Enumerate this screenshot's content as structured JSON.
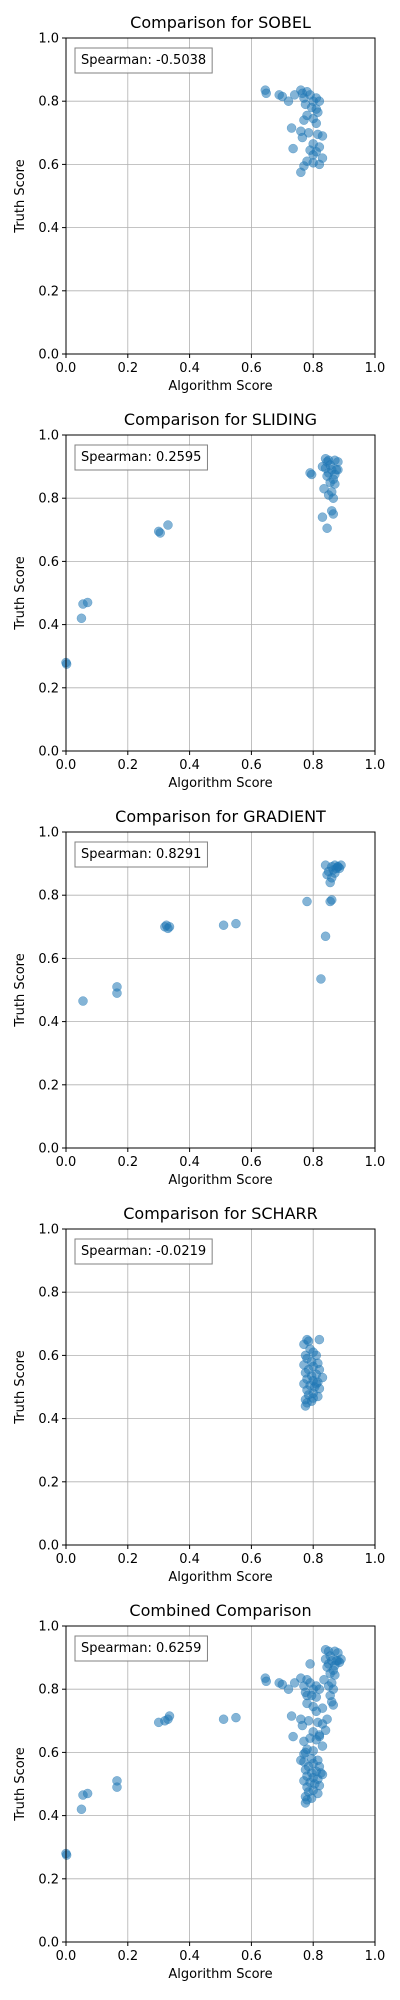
{
  "colors": {
    "point": "#1f77b4",
    "grid": "#b0b0b0",
    "axis": "#000000"
  },
  "chart_data": [
    {
      "type": "scatter",
      "title": "Comparison for SOBEL",
      "xlabel": "Algorithm Score",
      "ylabel": "Truth Score",
      "xlim": [
        0,
        1
      ],
      "ylim": [
        0,
        1
      ],
      "xticks": [
        "0.0",
        "0.2",
        "0.4",
        "0.6",
        "0.8",
        "1.0"
      ],
      "yticks": [
        "0.0",
        "0.2",
        "0.4",
        "0.6",
        "0.8",
        "1.0"
      ],
      "grid": true,
      "annotation": "Spearman: -0.5038",
      "points": [
        [
          0.645,
          0.835
        ],
        [
          0.648,
          0.825
        ],
        [
          0.69,
          0.82
        ],
        [
          0.7,
          0.815
        ],
        [
          0.72,
          0.8
        ],
        [
          0.74,
          0.82
        ],
        [
          0.76,
          0.835
        ],
        [
          0.765,
          0.825
        ],
        [
          0.77,
          0.81
        ],
        [
          0.78,
          0.83
        ],
        [
          0.79,
          0.82
        ],
        [
          0.8,
          0.8
        ],
        [
          0.81,
          0.81
        ],
        [
          0.82,
          0.8
        ],
        [
          0.775,
          0.79
        ],
        [
          0.795,
          0.78
        ],
        [
          0.81,
          0.775
        ],
        [
          0.815,
          0.765
        ],
        [
          0.78,
          0.755
        ],
        [
          0.8,
          0.745
        ],
        [
          0.77,
          0.74
        ],
        [
          0.81,
          0.73
        ],
        [
          0.73,
          0.715
        ],
        [
          0.76,
          0.705
        ],
        [
          0.785,
          0.7
        ],
        [
          0.815,
          0.695
        ],
        [
          0.83,
          0.69
        ],
        [
          0.765,
          0.685
        ],
        [
          0.8,
          0.665
        ],
        [
          0.82,
          0.655
        ],
        [
          0.735,
          0.65
        ],
        [
          0.79,
          0.645
        ],
        [
          0.81,
          0.64
        ],
        [
          0.83,
          0.62
        ],
        [
          0.78,
          0.61
        ],
        [
          0.8,
          0.605
        ],
        [
          0.77,
          0.595
        ],
        [
          0.76,
          0.575
        ],
        [
          0.82,
          0.6
        ],
        [
          0.8,
          0.63
        ]
      ]
    },
    {
      "type": "scatter",
      "title": "Comparison for SLIDING",
      "xlabel": "Algorithm Score",
      "ylabel": "Truth Score",
      "xlim": [
        0,
        1
      ],
      "ylim": [
        0,
        1
      ],
      "xticks": [
        "0.0",
        "0.2",
        "0.4",
        "0.6",
        "0.8",
        "1.0"
      ],
      "yticks": [
        "0.0",
        "0.2",
        "0.4",
        "0.6",
        "0.8",
        "1.0"
      ],
      "grid": true,
      "annotation": "Spearman: 0.2595",
      "points": [
        [
          0.0,
          0.28
        ],
        [
          0.002,
          0.275
        ],
        [
          0.05,
          0.42
        ],
        [
          0.055,
          0.465
        ],
        [
          0.07,
          0.47
        ],
        [
          0.3,
          0.695
        ],
        [
          0.305,
          0.69
        ],
        [
          0.33,
          0.715
        ],
        [
          0.79,
          0.88
        ],
        [
          0.795,
          0.875
        ],
        [
          0.84,
          0.925
        ],
        [
          0.845,
          0.915
        ],
        [
          0.85,
          0.92
        ],
        [
          0.87,
          0.92
        ],
        [
          0.88,
          0.915
        ],
        [
          0.855,
          0.905
        ],
        [
          0.84,
          0.895
        ],
        [
          0.86,
          0.89
        ],
        [
          0.875,
          0.89
        ],
        [
          0.85,
          0.88
        ],
        [
          0.87,
          0.875
        ],
        [
          0.845,
          0.87
        ],
        [
          0.865,
          0.86
        ],
        [
          0.855,
          0.85
        ],
        [
          0.87,
          0.845
        ],
        [
          0.835,
          0.83
        ],
        [
          0.86,
          0.82
        ],
        [
          0.85,
          0.81
        ],
        [
          0.865,
          0.8
        ],
        [
          0.86,
          0.76
        ],
        [
          0.865,
          0.75
        ],
        [
          0.83,
          0.74
        ],
        [
          0.845,
          0.705
        ],
        [
          0.88,
          0.89
        ],
        [
          0.83,
          0.9
        ]
      ]
    },
    {
      "type": "scatter",
      "title": "Comparison for GRADIENT",
      "xlabel": "Algorithm Score",
      "ylabel": "Truth Score",
      "xlim": [
        0,
        1
      ],
      "ylim": [
        0,
        1
      ],
      "xticks": [
        "0.0",
        "0.2",
        "0.4",
        "0.6",
        "0.8",
        "1.0"
      ],
      "yticks": [
        "0.0",
        "0.2",
        "0.4",
        "0.6",
        "0.8",
        "1.0"
      ],
      "grid": true,
      "annotation": "Spearman: 0.8291",
      "points": [
        [
          0.055,
          0.465
        ],
        [
          0.165,
          0.49
        ],
        [
          0.165,
          0.51
        ],
        [
          0.32,
          0.7
        ],
        [
          0.325,
          0.705
        ],
        [
          0.33,
          0.695
        ],
        [
          0.335,
          0.7
        ],
        [
          0.51,
          0.705
        ],
        [
          0.55,
          0.71
        ],
        [
          0.78,
          0.78
        ],
        [
          0.825,
          0.535
        ],
        [
          0.84,
          0.67
        ],
        [
          0.855,
          0.78
        ],
        [
          0.86,
          0.785
        ],
        [
          0.84,
          0.895
        ],
        [
          0.86,
          0.89
        ],
        [
          0.87,
          0.895
        ],
        [
          0.88,
          0.89
        ],
        [
          0.89,
          0.895
        ],
        [
          0.875,
          0.885
        ],
        [
          0.865,
          0.88
        ],
        [
          0.85,
          0.875
        ],
        [
          0.87,
          0.87
        ],
        [
          0.845,
          0.865
        ],
        [
          0.86,
          0.855
        ],
        [
          0.855,
          0.84
        ],
        [
          0.88,
          0.89
        ],
        [
          0.885,
          0.885
        ]
      ]
    },
    {
      "type": "scatter",
      "title": "Comparison for SCHARR",
      "xlabel": "Algorithm Score",
      "ylabel": "Truth Score",
      "xlim": [
        0,
        1
      ],
      "ylim": [
        0,
        1
      ],
      "xticks": [
        "0.0",
        "0.2",
        "0.4",
        "0.6",
        "0.8",
        "1.0"
      ],
      "yticks": [
        "0.0",
        "0.2",
        "0.4",
        "0.6",
        "0.8",
        "1.0"
      ],
      "grid": true,
      "annotation": "Spearman: -0.0219",
      "points": [
        [
          0.78,
          0.65
        ],
        [
          0.785,
          0.645
        ],
        [
          0.82,
          0.65
        ],
        [
          0.77,
          0.635
        ],
        [
          0.79,
          0.62
        ],
        [
          0.8,
          0.61
        ],
        [
          0.775,
          0.6
        ],
        [
          0.81,
          0.6
        ],
        [
          0.78,
          0.59
        ],
        [
          0.795,
          0.58
        ],
        [
          0.815,
          0.575
        ],
        [
          0.77,
          0.57
        ],
        [
          0.8,
          0.565
        ],
        [
          0.785,
          0.555
        ],
        [
          0.82,
          0.555
        ],
        [
          0.775,
          0.545
        ],
        [
          0.81,
          0.54
        ],
        [
          0.795,
          0.535
        ],
        [
          0.83,
          0.53
        ],
        [
          0.78,
          0.525
        ],
        [
          0.8,
          0.52
        ],
        [
          0.815,
          0.515
        ],
        [
          0.77,
          0.51
        ],
        [
          0.79,
          0.505
        ],
        [
          0.805,
          0.5
        ],
        [
          0.82,
          0.495
        ],
        [
          0.78,
          0.49
        ],
        [
          0.8,
          0.48
        ],
        [
          0.785,
          0.475
        ],
        [
          0.815,
          0.47
        ],
        [
          0.775,
          0.46
        ],
        [
          0.795,
          0.455
        ],
        [
          0.78,
          0.45
        ],
        [
          0.775,
          0.44
        ],
        [
          0.8,
          0.465
        ],
        [
          0.81,
          0.51
        ]
      ]
    },
    {
      "type": "scatter",
      "title": "Combined Comparison",
      "xlabel": "Algorithm Score",
      "ylabel": "Truth Score",
      "xlim": [
        0,
        1
      ],
      "ylim": [
        0,
        1
      ],
      "xticks": [
        "0.0",
        "0.2",
        "0.4",
        "0.6",
        "0.8",
        "1.0"
      ],
      "yticks": [
        "0.0",
        "0.2",
        "0.4",
        "0.6",
        "0.8",
        "1.0"
      ],
      "grid": true,
      "annotation": "Spearman: 0.6259",
      "points": [
        [
          0.0,
          0.28
        ],
        [
          0.002,
          0.275
        ],
        [
          0.05,
          0.42
        ],
        [
          0.055,
          0.465
        ],
        [
          0.07,
          0.47
        ],
        [
          0.165,
          0.49
        ],
        [
          0.165,
          0.51
        ],
        [
          0.3,
          0.695
        ],
        [
          0.32,
          0.7
        ],
        [
          0.33,
          0.705
        ],
        [
          0.335,
          0.715
        ],
        [
          0.51,
          0.705
        ],
        [
          0.55,
          0.71
        ],
        [
          0.645,
          0.835
        ],
        [
          0.648,
          0.825
        ],
        [
          0.69,
          0.82
        ],
        [
          0.7,
          0.815
        ],
        [
          0.72,
          0.8
        ],
        [
          0.74,
          0.82
        ],
        [
          0.76,
          0.835
        ],
        [
          0.77,
          0.81
        ],
        [
          0.78,
          0.83
        ],
        [
          0.79,
          0.82
        ],
        [
          0.8,
          0.8
        ],
        [
          0.81,
          0.81
        ],
        [
          0.82,
          0.8
        ],
        [
          0.775,
          0.79
        ],
        [
          0.795,
          0.78
        ],
        [
          0.81,
          0.775
        ],
        [
          0.78,
          0.755
        ],
        [
          0.8,
          0.745
        ],
        [
          0.81,
          0.73
        ],
        [
          0.73,
          0.715
        ],
        [
          0.76,
          0.705
        ],
        [
          0.785,
          0.7
        ],
        [
          0.815,
          0.695
        ],
        [
          0.83,
          0.69
        ],
        [
          0.765,
          0.685
        ],
        [
          0.8,
          0.665
        ],
        [
          0.82,
          0.655
        ],
        [
          0.735,
          0.65
        ],
        [
          0.79,
          0.645
        ],
        [
          0.81,
          0.64
        ],
        [
          0.83,
          0.62
        ],
        [
          0.78,
          0.61
        ],
        [
          0.8,
          0.605
        ],
        [
          0.77,
          0.595
        ],
        [
          0.76,
          0.575
        ],
        [
          0.82,
          0.65
        ],
        [
          0.77,
          0.635
        ],
        [
          0.775,
          0.6
        ],
        [
          0.795,
          0.58
        ],
        [
          0.815,
          0.575
        ],
        [
          0.77,
          0.57
        ],
        [
          0.8,
          0.565
        ],
        [
          0.785,
          0.555
        ],
        [
          0.82,
          0.555
        ],
        [
          0.775,
          0.545
        ],
        [
          0.81,
          0.54
        ],
        [
          0.795,
          0.535
        ],
        [
          0.83,
          0.53
        ],
        [
          0.78,
          0.525
        ],
        [
          0.8,
          0.52
        ],
        [
          0.815,
          0.515
        ],
        [
          0.77,
          0.51
        ],
        [
          0.79,
          0.505
        ],
        [
          0.805,
          0.5
        ],
        [
          0.82,
          0.495
        ],
        [
          0.78,
          0.49
        ],
        [
          0.8,
          0.48
        ],
        [
          0.785,
          0.475
        ],
        [
          0.815,
          0.47
        ],
        [
          0.775,
          0.46
        ],
        [
          0.795,
          0.455
        ],
        [
          0.78,
          0.45
        ],
        [
          0.775,
          0.44
        ],
        [
          0.78,
          0.78
        ],
        [
          0.825,
          0.535
        ],
        [
          0.84,
          0.67
        ],
        [
          0.855,
          0.78
        ],
        [
          0.84,
          0.925
        ],
        [
          0.85,
          0.92
        ],
        [
          0.87,
          0.92
        ],
        [
          0.88,
          0.915
        ],
        [
          0.855,
          0.905
        ],
        [
          0.84,
          0.895
        ],
        [
          0.86,
          0.89
        ],
        [
          0.875,
          0.89
        ],
        [
          0.89,
          0.895
        ],
        [
          0.85,
          0.88
        ],
        [
          0.87,
          0.875
        ],
        [
          0.845,
          0.87
        ],
        [
          0.865,
          0.86
        ],
        [
          0.855,
          0.85
        ],
        [
          0.87,
          0.845
        ],
        [
          0.835,
          0.83
        ],
        [
          0.86,
          0.82
        ],
        [
          0.85,
          0.81
        ],
        [
          0.865,
          0.8
        ],
        [
          0.86,
          0.76
        ],
        [
          0.865,
          0.75
        ],
        [
          0.83,
          0.74
        ],
        [
          0.845,
          0.705
        ],
        [
          0.88,
          0.89
        ],
        [
          0.79,
          0.88
        ],
        [
          0.885,
          0.885
        ]
      ]
    }
  ]
}
